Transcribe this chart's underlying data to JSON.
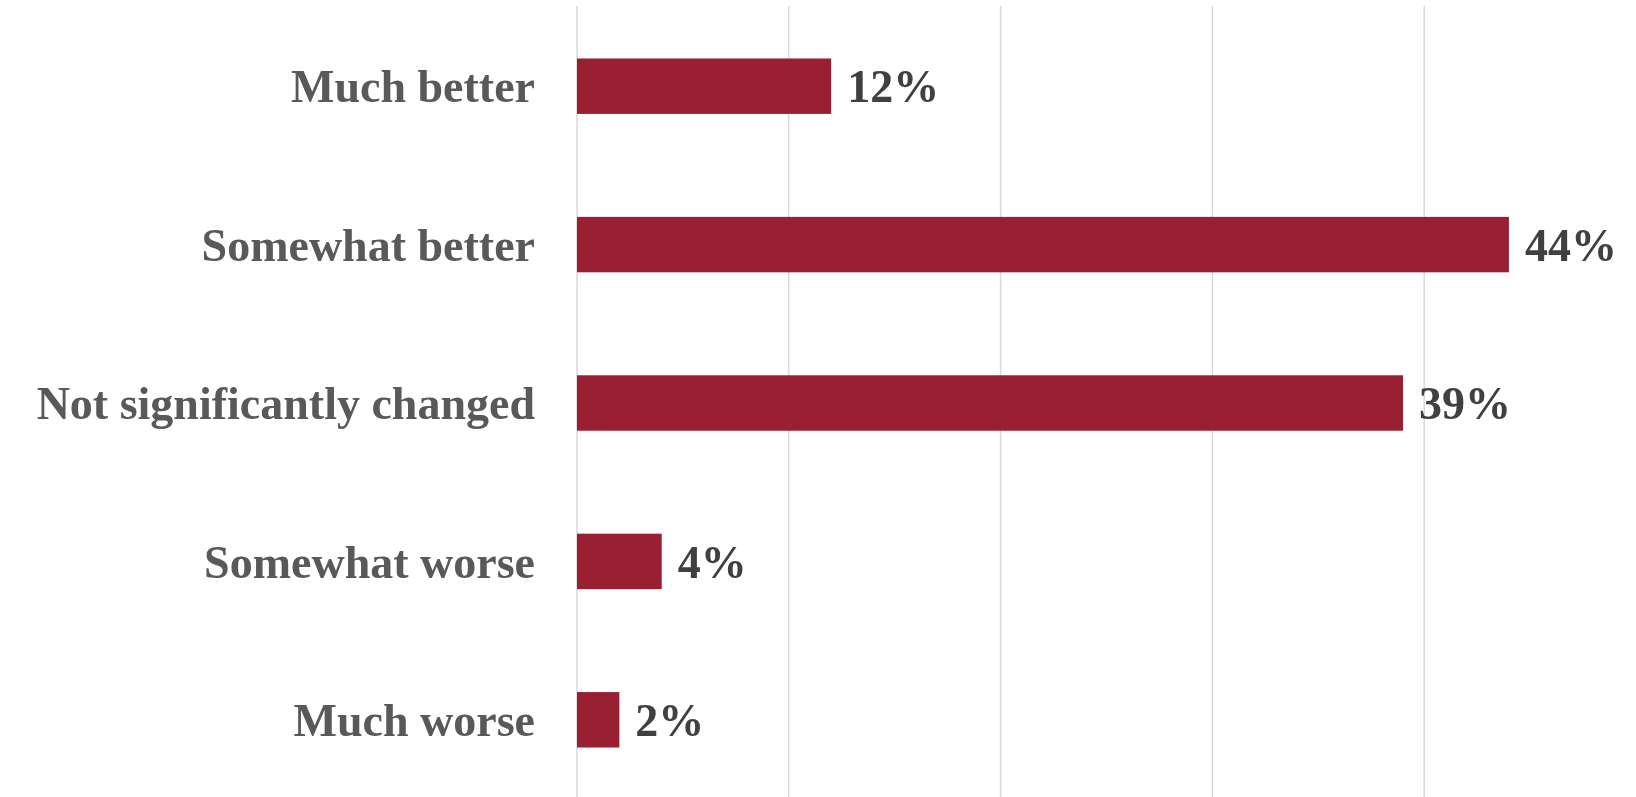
{
  "chart_data": {
    "type": "bar",
    "orientation": "horizontal",
    "categories": [
      "Much better",
      "Somewhat better",
      "Not significantly changed",
      "Somewhat worse",
      "Much worse"
    ],
    "values": [
      12,
      44,
      39,
      4,
      2
    ],
    "value_labels": [
      "12%",
      "44%",
      "39%",
      "4%",
      "2%"
    ],
    "color": "#991f33",
    "xlim": [
      0,
      50
    ],
    "xticks": [
      {
        "value": 0,
        "label": null
      },
      {
        "value": 10,
        "label": null
      },
      {
        "value": 20,
        "label": null
      },
      {
        "value": 30,
        "label": null
      },
      {
        "value": 40,
        "label": null
      }
    ],
    "grid": "x",
    "tick_labels": "y"
  }
}
